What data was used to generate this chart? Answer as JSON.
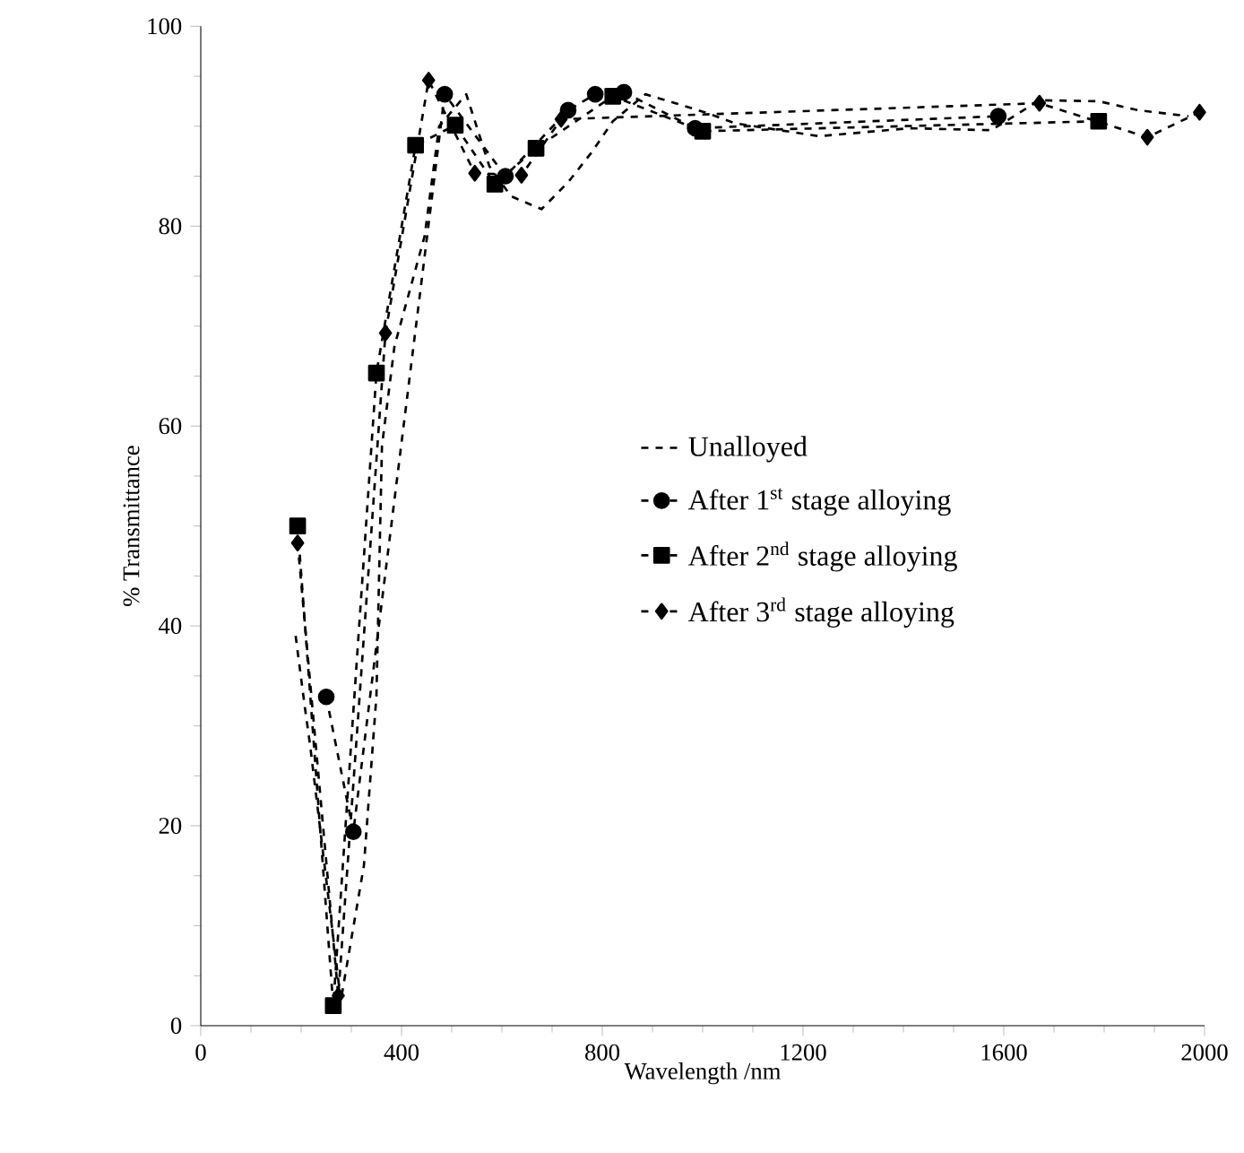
{
  "chart_data": {
    "type": "line",
    "xlabel": "Wavelength /nm",
    "ylabel": "% Transmittance",
    "xlim": [
      0,
      2000
    ],
    "ylim": [
      0,
      100
    ],
    "xticks": [
      0,
      400,
      800,
      1200,
      1600,
      2000
    ],
    "yticks": [
      0,
      20,
      40,
      60,
      80,
      100
    ],
    "grid": false,
    "legend": "right",
    "series": [
      {
        "name": "Unalloyed",
        "color": "#000000",
        "line_style": "dashed",
        "marker": "none",
        "x": [
          189,
          207,
          218,
          279,
          325,
          350,
          361,
          386,
          446,
          475,
          529,
          575,
          618,
          679,
          732,
          779,
          821,
          886,
          946,
          1004,
          1064,
          1232,
          1411,
          1575,
          1671,
          1789,
          1868,
          1968
        ],
        "values": [
          39,
          32,
          28,
          2.5,
          16,
          33,
          58,
          68,
          79,
          90,
          93.2,
          86,
          83,
          81.7,
          84.4,
          87.4,
          90.5,
          93.2,
          92.3,
          91.4,
          90.3,
          89,
          89.8,
          89.6,
          92.6,
          92.5,
          91.6,
          91
        ]
      },
      {
        "name": "After 1$^{st}$ stage alloying",
        "color": "#000000",
        "line_style": "dashed",
        "marker": "circle",
        "x": [
          250,
          304,
          486,
          607,
          732,
          786,
          843,
          985,
          1589
        ],
        "values": [
          32.9,
          19.4,
          93.2,
          85,
          91.6,
          93.2,
          93.4,
          89.8,
          91
        ]
      },
      {
        "name": "After 2$^{nd}$ stage alloying",
        "color": "#000000",
        "line_style": "dashed",
        "marker": "square",
        "x": [
          193,
          264,
          350,
          428,
          507,
          586,
          668,
          821,
          1000,
          1789
        ],
        "values": [
          50,
          2,
          65.3,
          88.1,
          90.1,
          84.2,
          87.8,
          93,
          89.5,
          90.5
        ]
      },
      {
        "name": "After 3$^{rd}$ stage alloying",
        "color": "#000000",
        "line_style": "dashed",
        "marker": "diamond",
        "x": [
          193,
          274,
          368,
          454,
          546,
          639,
          718,
          1671,
          1886,
          1990
        ],
        "values": [
          48.3,
          3,
          69.3,
          94.6,
          85.3,
          85.1,
          90.7,
          92.3,
          88.9,
          91.4
        ]
      }
    ]
  }
}
